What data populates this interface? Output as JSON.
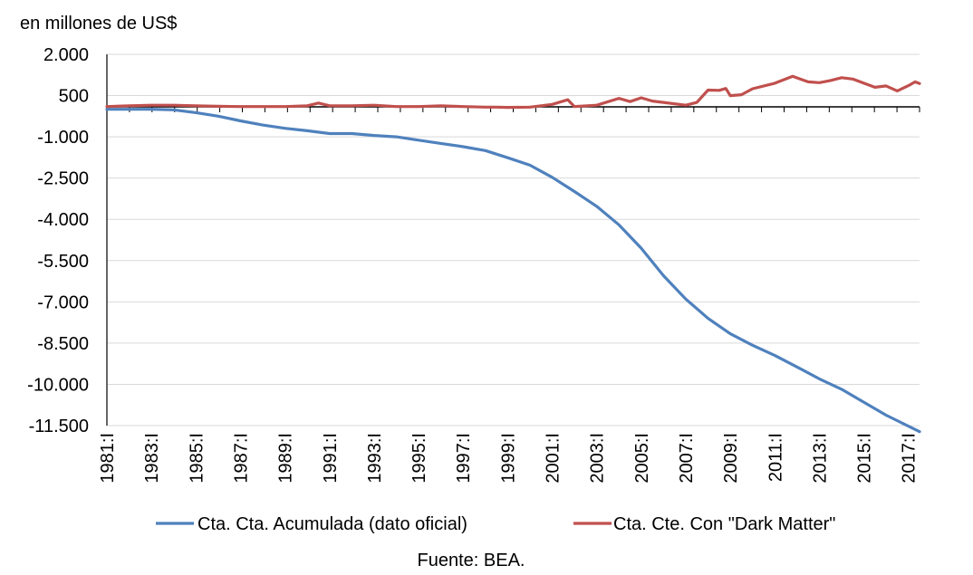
{
  "chart_data": {
    "type": "line",
    "ylabel": "en millones de US$",
    "source": "Fuente: BEA.",
    "ylim": [
      -11500,
      2000
    ],
    "y_ticks": [
      2000,
      500,
      -1000,
      -2500,
      -4000,
      -5500,
      -7000,
      -8500,
      -10000,
      -11500
    ],
    "y_tick_labels": [
      "2.000",
      "500",
      "-1.000",
      "-2.500",
      "-4.000",
      "-5.500",
      "-7.000",
      "-8.500",
      "-10.000",
      "-11.500"
    ],
    "x_tick_labels": [
      "1981:I",
      "1983:I",
      "1985:I",
      "1987:I",
      "1989:I",
      "1991:I",
      "1993:I",
      "1995:I",
      "1997:I",
      "1999:I",
      "2001:I",
      "2003:I",
      "2005:I",
      "2007:I",
      "2009:I",
      "2011:I",
      "2013:I",
      "2015:I",
      "2017:I"
    ],
    "x_tick_years": [
      1981,
      1983,
      1985,
      1987,
      1989,
      1991,
      1993,
      1995,
      1997,
      1999,
      2001,
      2003,
      2005,
      2007,
      2009,
      2011,
      2013,
      2015,
      2017
    ],
    "xlim": [
      1981,
      2017.5
    ],
    "grid": true,
    "legend_position": "bottom",
    "series": [
      {
        "name": "Cta. Cta. Acumulada (dato oficial)",
        "color": "#4F81BD",
        "x": [
          1981,
          1982,
          1983,
          1984,
          1985,
          1986,
          1987,
          1988,
          1989,
          1990,
          1991,
          1992,
          1993,
          1994,
          1995,
          1996,
          1997,
          1998,
          1999,
          2000,
          2001,
          2002,
          2003,
          2004,
          2005,
          2006,
          2007,
          2008,
          2009,
          2010,
          2011,
          2012,
          2013,
          2014,
          2015,
          2016,
          2017.5
        ],
        "values": [
          0,
          0,
          0,
          -20,
          -120,
          -250,
          -420,
          -570,
          -690,
          -780,
          -880,
          -880,
          -950,
          -1000,
          -1120,
          -1240,
          -1360,
          -1500,
          -1760,
          -2030,
          -2470,
          -2990,
          -3530,
          -4200,
          -5050,
          -6050,
          -6900,
          -7600,
          -8160,
          -8580,
          -8950,
          -9370,
          -9800,
          -10180,
          -10650,
          -11120,
          -11720
        ]
      },
      {
        "name": "Cta. Cte. Con \"Dark Matter\"",
        "color": "#C0504D",
        "x": [
          1981,
          1982,
          1983,
          1984,
          1985,
          1986,
          1987,
          1988,
          1989,
          1990,
          1990.5,
          1991,
          1992,
          1993,
          1994,
          1995,
          1996,
          1997,
          1998,
          1998.5,
          1999,
          2000,
          2001,
          2001.7,
          2002,
          2003,
          2004,
          2004.5,
          2005,
          2005.5,
          2006,
          2007,
          2007.5,
          2008,
          2008.5,
          2008.8,
          2009,
          2009.5,
          2010,
          2011,
          2011.8,
          2012.5,
          2013,
          2013.5,
          2014,
          2014.5,
          2015,
          2015.5,
          2016,
          2016.5,
          2017,
          2017.3,
          2017.5
        ],
        "values": [
          100,
          130,
          150,
          150,
          130,
          110,
          100,
          100,
          100,
          130,
          230,
          130,
          130,
          150,
          100,
          100,
          130,
          100,
          80,
          80,
          70,
          80,
          180,
          350,
          100,
          150,
          400,
          280,
          420,
          300,
          250,
          150,
          250,
          700,
          690,
          760,
          500,
          530,
          750,
          950,
          1200,
          1000,
          970,
          1050,
          1150,
          1100,
          950,
          800,
          850,
          670,
          860,
          1000,
          940
        ]
      }
    ]
  }
}
